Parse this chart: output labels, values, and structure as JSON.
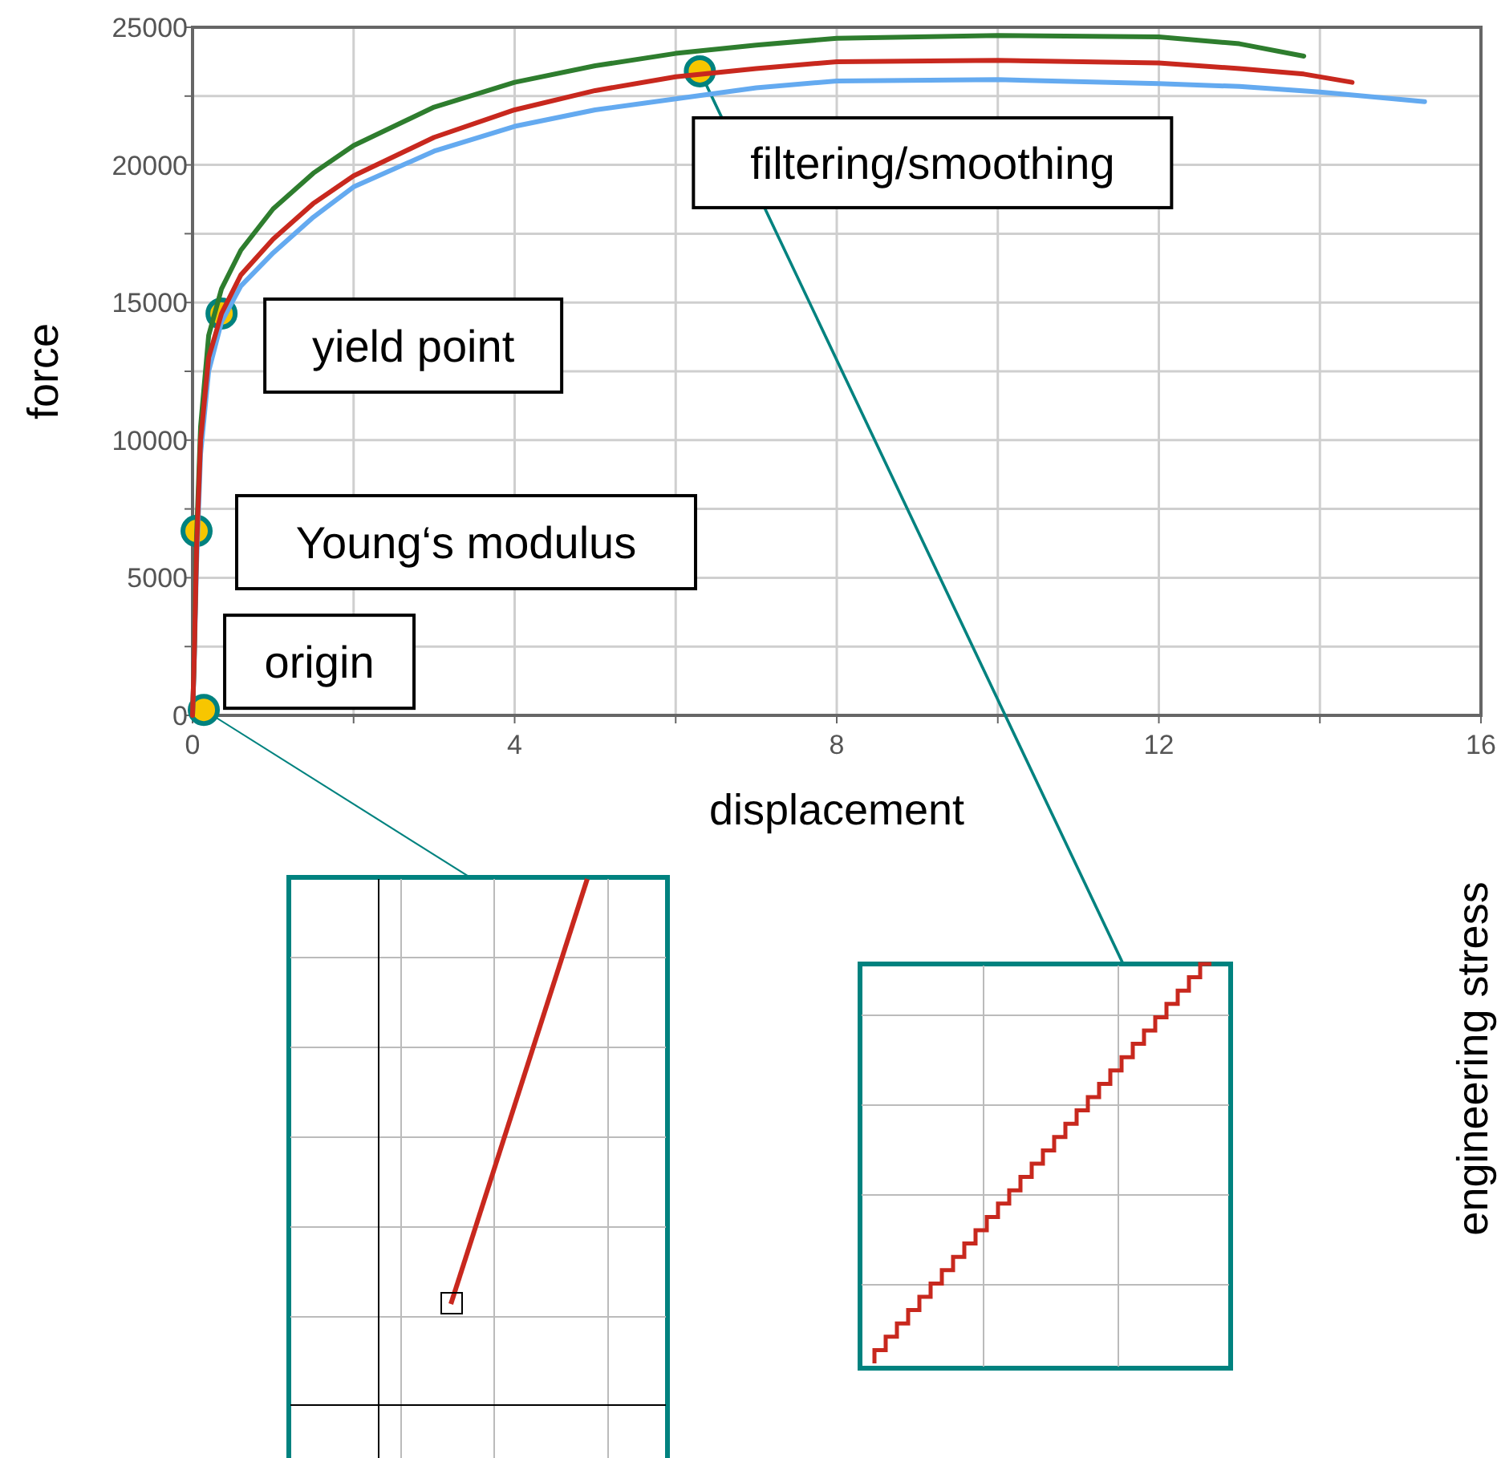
{
  "chart_data": {
    "type": "line",
    "xlabel": "displacement",
    "ylabel": "force",
    "y2label": "engineering stress",
    "xlim": [
      0,
      16
    ],
    "ylim": [
      0,
      25000
    ],
    "xticks": [
      0,
      {
        "value": 2,
        "label": null
      },
      4,
      {
        "value": 6,
        "label": null
      },
      8,
      {
        "value": 10,
        "label": null
      },
      12,
      {
        "value": 14,
        "label": null
      },
      16
    ],
    "yticks": [
      0,
      {
        "value": 2500,
        "label": null
      },
      5000,
      {
        "value": 7500,
        "label": null
      },
      10000,
      {
        "value": 12500,
        "label": null
      },
      15000,
      {
        "value": 17500,
        "label": null
      },
      20000,
      {
        "value": 22500,
        "label": null
      },
      25000
    ],
    "grid": true,
    "marker": "none",
    "line_style": "solid",
    "series": [
      {
        "color": "#64aaf0",
        "x": [
          0,
          0.02,
          0.05,
          0.1,
          0.2,
          0.36,
          0.6,
          1,
          1.5,
          2,
          3,
          4,
          5,
          6,
          7,
          8,
          10,
          12,
          13,
          14,
          15.3
        ],
        "values": [
          0,
          1800,
          5500,
          9500,
          12500,
          14300,
          15600,
          16800,
          18100,
          19200,
          20500,
          21400,
          22000,
          22400,
          22800,
          23050,
          23100,
          22950,
          22850,
          22650,
          22300
        ]
      },
      {
        "color": "#2e7d2e",
        "x": [
          0,
          0.02,
          0.05,
          0.1,
          0.2,
          0.36,
          0.6,
          1,
          1.5,
          2,
          3,
          4,
          5,
          6,
          7,
          8,
          10,
          12,
          13,
          13.8
        ],
        "values": [
          0,
          2000,
          6500,
          10500,
          13800,
          15500,
          16900,
          18400,
          19700,
          20700,
          22100,
          23000,
          23600,
          24050,
          24350,
          24600,
          24700,
          24650,
          24400,
          23950
        ]
      },
      {
        "color": "#c8281e",
        "x": [
          0,
          0.02,
          0.05,
          0.1,
          0.2,
          0.36,
          0.6,
          1,
          1.5,
          2,
          3,
          4,
          5,
          6,
          7,
          8,
          10,
          12,
          13,
          13.8,
          14.4
        ],
        "values": [
          0,
          2000,
          6000,
          10000,
          13000,
          14600,
          16000,
          17300,
          18600,
          19600,
          21000,
          22000,
          22700,
          23200,
          23500,
          23750,
          23800,
          23700,
          23500,
          23300,
          23000
        ]
      }
    ],
    "annotations": [
      {
        "text": "filtering/smoothing",
        "x": 6.3,
        "y": 23400
      },
      {
        "text": "yield point",
        "x": 0.36,
        "y": 14600
      },
      {
        "text": "Young‘s modulus",
        "x": 0.05,
        "y": 6700
      },
      {
        "text": "origin",
        "x": 0.14,
        "y": 200
      }
    ]
  }
}
